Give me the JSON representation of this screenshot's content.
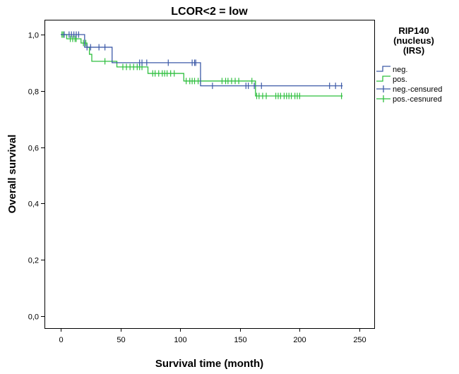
{
  "chart_data": {
    "type": "line",
    "subtype": "kaplan-meier",
    "title": "LCOR<2 = low",
    "xlabel": "Survival time (month)",
    "ylabel": "Overall survival",
    "xlim": [
      0,
      250
    ],
    "ylim": [
      0,
      1.0
    ],
    "x_ticks": [
      "0",
      "50",
      "100",
      "150",
      "200",
      "250"
    ],
    "y_ticks": [
      "0,0",
      "0,2",
      "0,4",
      "0,6",
      "0,8",
      "1,0"
    ],
    "grid": false,
    "legend": {
      "title_lines": [
        "RIP140",
        "(nucleus)",
        "(IRS)"
      ],
      "placement": "right",
      "entries": [
        "neg.",
        "pos.",
        "neg.-censured",
        "pos.-cesnured"
      ]
    },
    "colors": {
      "neg": "#3d5aa8",
      "pos": "#2fbf3f",
      "frame": "#000000"
    },
    "series": [
      {
        "name": "neg.",
        "step_x": [
          0,
          20,
          43,
          117,
          236
        ],
        "step_y": [
          1.0,
          0.955,
          0.9,
          0.818,
          0.818
        ],
        "censored_x": [
          3,
          7,
          9,
          11,
          13,
          15,
          22,
          25,
          32,
          37,
          66,
          68,
          72,
          90,
          110,
          112,
          113,
          127,
          155,
          157,
          162,
          168,
          225,
          230,
          235
        ]
      },
      {
        "name": "pos.",
        "step_x": [
          0,
          5,
          17,
          22,
          24,
          26,
          47,
          73,
          103,
          163,
          236
        ],
        "step_y": [
          1.0,
          0.985,
          0.97,
          0.955,
          0.93,
          0.905,
          0.885,
          0.862,
          0.835,
          0.782,
          0.782
        ],
        "censored_x": [
          1,
          2,
          8,
          10,
          12,
          13,
          19,
          21,
          37,
          52,
          55,
          58,
          61,
          64,
          66,
          68,
          77,
          79,
          82,
          85,
          87,
          89,
          92,
          95,
          105,
          108,
          110,
          112,
          115,
          117,
          135,
          138,
          140,
          143,
          146,
          149,
          160,
          164,
          166,
          169,
          172,
          180,
          182,
          184,
          187,
          189,
          191,
          193,
          196,
          198,
          200,
          235
        ]
      }
    ]
  }
}
